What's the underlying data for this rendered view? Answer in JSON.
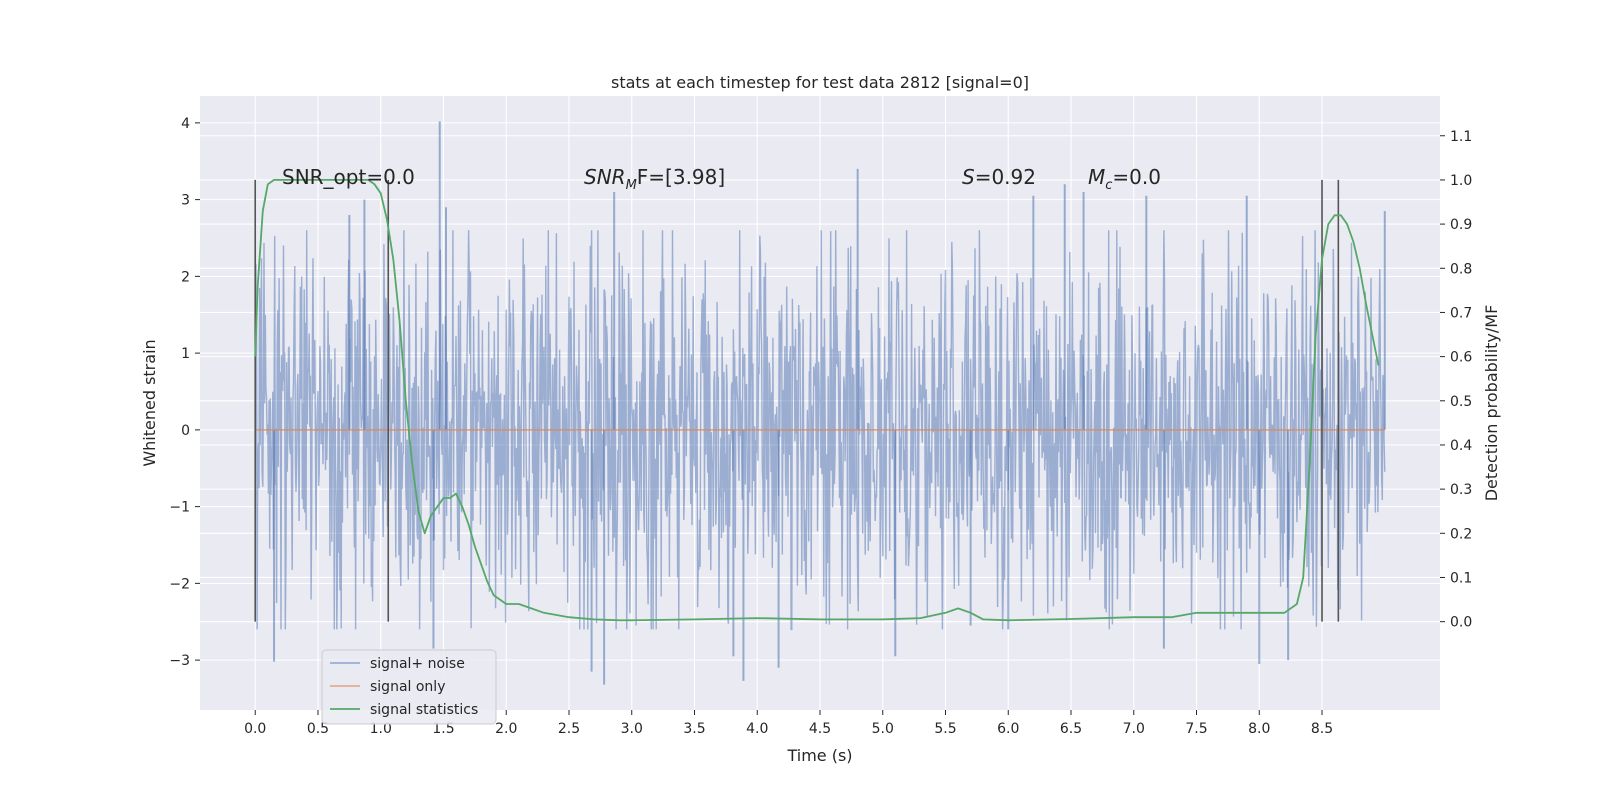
{
  "chart_data": {
    "type": "line",
    "title": "stats at each timestep for test data 2812 [signal=0]",
    "xlabel": "Time (s)",
    "ylabel_left": "Whitened strain",
    "ylabel_right": "Detection probability/MF",
    "xlim": [
      -0.44,
      9.44
    ],
    "ylim_left": [
      -3.65,
      4.35
    ],
    "ylim_right": [
      -0.2,
      1.19
    ],
    "x_ticks": [
      0.0,
      0.5,
      1.0,
      1.5,
      2.0,
      2.5,
      3.0,
      3.5,
      4.0,
      4.5,
      5.0,
      5.5,
      6.0,
      6.5,
      7.0,
      7.5,
      8.0,
      8.5
    ],
    "x_tick_labels": [
      "0.0",
      "0.5",
      "1.0",
      "1.5",
      "2.0",
      "2.5",
      "3.0",
      "3.5",
      "4.0",
      "4.5",
      "5.0",
      "5.5",
      "6.0",
      "6.5",
      "7.0",
      "7.5",
      "8.0",
      "8.5"
    ],
    "y_left_ticks": [
      -3,
      -2,
      -1,
      0,
      1,
      2,
      3,
      4
    ],
    "y_left_tick_labels": [
      "−3",
      "−2",
      "−1",
      "0",
      "1",
      "2",
      "3",
      "4"
    ],
    "y_right_ticks": [
      0.0,
      0.1,
      0.2,
      0.3,
      0.4,
      0.5,
      0.6,
      0.7,
      0.8,
      0.9,
      1.0,
      1.1
    ],
    "y_right_tick_labels": [
      "0.0",
      "0.1",
      "0.2",
      "0.3",
      "0.4",
      "0.5",
      "0.6",
      "0.7",
      "0.8",
      "0.9",
      "1.0",
      "1.1"
    ],
    "annotations": {
      "snr_opt": "SNR_opt=0.0",
      "snr_mf_name": "SNR",
      "snr_mf_sub": "M",
      "snr_mf_value": "F=[3.98]",
      "s_name": "S",
      "s_value": "=0.92",
      "mc_name": "M",
      "mc_sub": "c",
      "mc_value": "=0.0"
    },
    "vertical_markers_x": [
      0.0,
      1.06,
      8.5,
      8.63
    ],
    "vertical_markers_range": [
      0.0,
      1.0
    ],
    "series": [
      {
        "name": "signal+ noise",
        "color": "#4c72b0",
        "style": "noise band",
        "x_range": [
          0.0,
          9.0
        ],
        "typical_envelope": [
          -1.5,
          1.5
        ],
        "spikes": [
          {
            "x": 1.47,
            "y": 4.02
          },
          {
            "x": 0.87,
            "y": 3.0
          },
          {
            "x": 1.52,
            "y": 2.9
          },
          {
            "x": 2.86,
            "y": 3.1
          },
          {
            "x": 4.8,
            "y": 3.4
          },
          {
            "x": 6.2,
            "y": 3.05
          },
          {
            "x": 6.45,
            "y": 3.2
          },
          {
            "x": 6.6,
            "y": 3.1
          },
          {
            "x": 7.1,
            "y": 3.05
          },
          {
            "x": 7.9,
            "y": 3.05
          },
          {
            "x": 9.0,
            "y": 2.85
          },
          {
            "x": 0.75,
            "y": 2.8
          },
          {
            "x": 0.15,
            "y": -3.02
          },
          {
            "x": 1.42,
            "y": -2.85
          },
          {
            "x": 2.68,
            "y": -3.15
          },
          {
            "x": 2.78,
            "y": -3.32
          },
          {
            "x": 3.81,
            "y": -2.95
          },
          {
            "x": 3.89,
            "y": -3.27
          },
          {
            "x": 4.17,
            "y": -3.1
          },
          {
            "x": 5.1,
            "y": -2.95
          },
          {
            "x": 8.0,
            "y": -3.05
          },
          {
            "x": 8.23,
            "y": -3.0
          },
          {
            "x": 7.24,
            "y": -2.85
          },
          {
            "x": 6.0,
            "y": -2.6
          },
          {
            "x": 5.7,
            "y": -2.55
          }
        ]
      },
      {
        "name": "signal only",
        "color": "#dd8452",
        "x": [
          0.0,
          9.0
        ],
        "y": [
          0.0,
          0.0
        ]
      },
      {
        "name": "signal statistics",
        "color": "#55a868",
        "x": [
          0.0,
          0.02,
          0.06,
          0.1,
          0.15,
          0.2,
          0.3,
          0.4,
          0.5,
          0.6,
          0.7,
          0.8,
          0.9,
          0.95,
          1.0,
          1.05,
          1.1,
          1.15,
          1.2,
          1.25,
          1.3,
          1.35,
          1.4,
          1.45,
          1.5,
          1.55,
          1.6,
          1.65,
          1.7,
          1.75,
          1.8,
          1.85,
          1.9,
          1.95,
          2.0,
          2.1,
          2.2,
          2.3,
          2.5,
          2.7,
          2.9,
          3.0,
          3.5,
          4.0,
          4.5,
          5.0,
          5.3,
          5.5,
          5.6,
          5.7,
          5.8,
          6.0,
          6.5,
          7.0,
          7.3,
          7.5,
          7.7,
          8.0,
          8.2,
          8.3,
          8.35,
          8.4,
          8.45,
          8.5,
          8.55,
          8.6,
          8.65,
          8.7,
          8.75,
          8.8,
          8.85,
          8.9,
          8.95
        ],
        "y": [
          0.6,
          0.76,
          0.93,
          0.99,
          1.0,
          1.0,
          1.0,
          1.0,
          1.0,
          1.0,
          1.0,
          1.0,
          1.0,
          0.99,
          0.97,
          0.91,
          0.82,
          0.68,
          0.5,
          0.36,
          0.25,
          0.2,
          0.24,
          0.26,
          0.28,
          0.28,
          0.29,
          0.26,
          0.22,
          0.17,
          0.13,
          0.09,
          0.06,
          0.05,
          0.04,
          0.04,
          0.03,
          0.02,
          0.01,
          0.005,
          0.003,
          0.003,
          0.005,
          0.008,
          0.005,
          0.005,
          0.008,
          0.02,
          0.03,
          0.02,
          0.005,
          0.003,
          0.006,
          0.01,
          0.01,
          0.02,
          0.02,
          0.02,
          0.02,
          0.04,
          0.1,
          0.35,
          0.65,
          0.82,
          0.9,
          0.92,
          0.92,
          0.9,
          0.86,
          0.8,
          0.72,
          0.65,
          0.58
        ]
      }
    ],
    "legend": {
      "location": "lower-left",
      "entries": [
        "signal+ noise",
        "signal only",
        "signal statistics"
      ]
    }
  }
}
